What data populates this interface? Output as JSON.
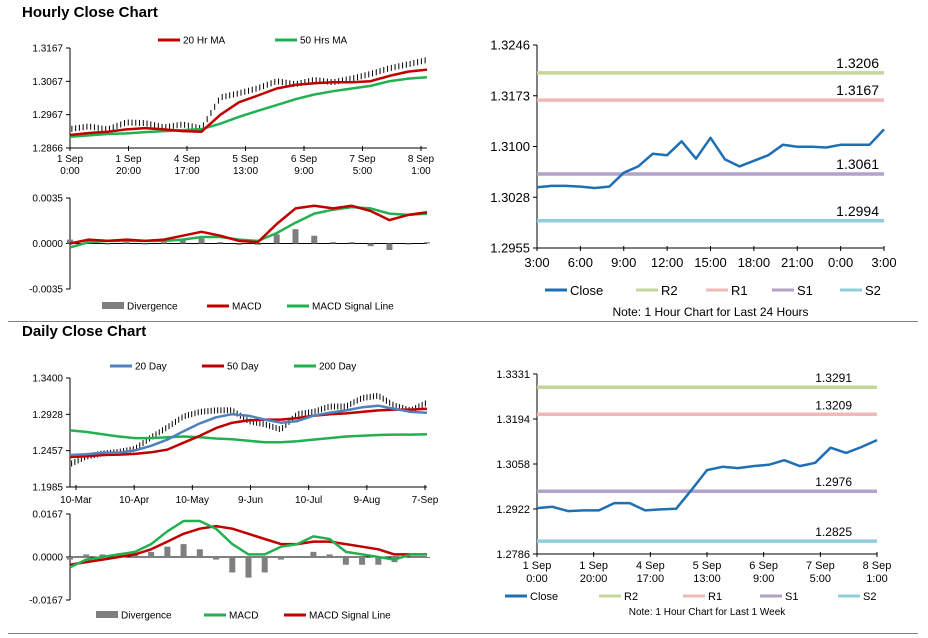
{
  "sections": {
    "hourly_title": "Hourly Close Chart",
    "daily_title": "Daily Close Chart"
  },
  "colors": {
    "ma_short": "#c00000",
    "ma_long": "#22b050",
    "ma_20day": "#4f81bd",
    "close": "#1f6fb5",
    "r2": "#c3d69b",
    "r1": "#f2b8b8",
    "s1": "#b3a2c7",
    "s2": "#92cddc",
    "divergence": "#7f7f7f"
  },
  "chart_data": [
    {
      "id": "hourly_price",
      "type": "line",
      "legend": [
        "20 Hr MA",
        "50 Hrs MA"
      ],
      "ylim": [
        1.2866,
        1.3167
      ],
      "yticks": [
        "1.3167",
        "1.3067",
        "1.2967",
        "1.2866"
      ],
      "xticks": [
        [
          "1 Sep",
          "0:00"
        ],
        [
          "1 Sep",
          "20:00"
        ],
        [
          "4 Sep",
          "17:00"
        ],
        [
          "5 Sep",
          "13:00"
        ],
        [
          "6 Sep",
          "9:00"
        ],
        [
          "7 Sep",
          "5:00"
        ],
        [
          "8 Sep",
          "1:00"
        ]
      ],
      "series": [
        {
          "name": "Price",
          "values": [
            1.2923,
            1.2931,
            1.2922,
            1.2943,
            1.2941,
            1.2928,
            1.2937,
            1.2925,
            1.3018,
            1.3031,
            1.3046,
            1.3067,
            1.3058,
            1.3071,
            1.3064,
            1.3075,
            1.3089,
            1.3106,
            1.3118,
            1.3131
          ]
        },
        {
          "name": "20 Hr MA",
          "values": [
            1.2905,
            1.2911,
            1.2915,
            1.2922,
            1.2926,
            1.2922,
            1.2917,
            1.2915,
            1.2966,
            1.3004,
            1.3024,
            1.3045,
            1.3056,
            1.3061,
            1.3064,
            1.3064,
            1.3067,
            1.3083,
            1.3096,
            1.3102
          ]
        },
        {
          "name": "50 Hrs MA",
          "values": [
            1.29,
            1.2904,
            1.2908,
            1.291,
            1.2914,
            1.2917,
            1.292,
            1.2923,
            1.2939,
            1.296,
            1.2978,
            1.2995,
            1.3013,
            1.3027,
            1.3037,
            1.3045,
            1.3053,
            1.3067,
            1.3075,
            1.3079
          ]
        }
      ]
    },
    {
      "id": "hourly_macd",
      "type": "line",
      "legend": [
        "Divergence",
        "MACD",
        "MACD Signal Line"
      ],
      "ylim": [
        -0.0035,
        0.0035
      ],
      "yticks": [
        "0.0035",
        "0.0000",
        "-0.0035"
      ],
      "series": [
        {
          "name": "MACD",
          "values": [
            0.0,
            0.0003,
            0.0002,
            0.0003,
            0.0002,
            0.0003,
            0.0006,
            0.0009,
            0.0006,
            0.0002,
            0.0001,
            0.0015,
            0.0027,
            0.0029,
            0.0027,
            0.0029,
            0.0025,
            0.0018,
            0.0022,
            0.0024
          ]
        },
        {
          "name": "MACD Signal Line",
          "values": [
            -0.0003,
            0.0001,
            0.0002,
            0.0002,
            0.0002,
            0.0002,
            0.0003,
            0.0005,
            0.0005,
            0.0003,
            0.0002,
            0.0008,
            0.0016,
            0.0023,
            0.0026,
            0.0028,
            0.0027,
            0.0023,
            0.0022,
            0.0023
          ]
        },
        {
          "name": "Divergence",
          "values": [
            0.0003,
            0.0002,
            0.0,
            0.0001,
            0.0,
            0.0001,
            0.0003,
            0.0004,
            0.0001,
            -0.0001,
            -0.0001,
            0.0007,
            0.0011,
            0.0006,
            0.0001,
            0.0001,
            -0.0002,
            -0.0005,
            0.0,
            0.0001
          ]
        }
      ]
    },
    {
      "id": "hourly_levels",
      "type": "line",
      "ylim": [
        1.2955,
        1.3246
      ],
      "yticks": [
        "1.3246",
        "1.3173",
        "1.3100",
        "1.3028",
        "1.2955"
      ],
      "xticks": [
        "3:00",
        "6:00",
        "9:00",
        "12:00",
        "15:00",
        "18:00",
        "21:00",
        "0:00",
        "3:00"
      ],
      "legend": [
        "Close",
        "R2",
        "R1",
        "S1",
        "S2"
      ],
      "levels": {
        "R2": 1.3206,
        "R1": 1.3167,
        "S1": 1.3061,
        "S2": 1.2994
      },
      "level_labels": {
        "R2": "1.3206",
        "R1": "1.3167",
        "S1": "1.3061",
        "S2": "1.2994"
      },
      "series": [
        {
          "name": "Close",
          "values": [
            1.3042,
            1.3044,
            1.3044,
            1.3043,
            1.3041,
            1.3043,
            1.3063,
            1.3072,
            1.309,
            1.3088,
            1.3108,
            1.3083,
            1.3113,
            1.3082,
            1.3072,
            1.308,
            1.3088,
            1.3103,
            1.31,
            1.31,
            1.3099,
            1.3103,
            1.3103,
            1.3103,
            1.3125
          ]
        }
      ],
      "note": "Note: 1 Hour Chart for Last 24 Hours"
    },
    {
      "id": "daily_price",
      "type": "line",
      "legend": [
        "20 Day",
        "50 Day",
        "200 Day"
      ],
      "ylim": [
        1.1985,
        1.34
      ],
      "yticks": [
        "1.3400",
        "1.2928",
        "1.2457",
        "1.1985"
      ],
      "xticks": [
        "10-Mar",
        "10-Apr",
        "10-May",
        "9-Jun",
        "10-Jul",
        "9-Aug",
        "7-Sep"
      ],
      "series": [
        {
          "name": "Price",
          "values": [
            1.228,
            1.238,
            1.242,
            1.244,
            1.248,
            1.263,
            1.276,
            1.29,
            1.296,
            1.298,
            1.298,
            1.284,
            1.28,
            1.273,
            1.293,
            1.296,
            1.303,
            1.303,
            1.314,
            1.317,
            1.304,
            1.298,
            1.308
          ]
        },
        {
          "name": "20 Day",
          "values": [
            1.24,
            1.241,
            1.243,
            1.243,
            1.246,
            1.252,
            1.26,
            1.271,
            1.281,
            1.289,
            1.293,
            1.291,
            1.286,
            1.282,
            1.284,
            1.291,
            1.295,
            1.298,
            1.302,
            1.304,
            1.3,
            1.296,
            1.295
          ]
        },
        {
          "name": "50 Day",
          "values": [
            1.2375,
            1.2385,
            1.24,
            1.2405,
            1.2415,
            1.2435,
            1.247,
            1.256,
            1.265,
            1.275,
            1.282,
            1.285,
            1.286,
            1.286,
            1.288,
            1.291,
            1.293,
            1.294,
            1.296,
            1.298,
            1.299,
            1.299,
            1.3
          ]
        },
        {
          "name": "200 Day",
          "values": [
            1.272,
            1.27,
            1.267,
            1.264,
            1.262,
            1.262,
            1.263,
            1.264,
            1.263,
            1.2615,
            1.2605,
            1.2585,
            1.2565,
            1.2565,
            1.258,
            1.26,
            1.262,
            1.264,
            1.265,
            1.266,
            1.2665,
            1.2665,
            1.267
          ]
        }
      ]
    },
    {
      "id": "daily_macd",
      "type": "line",
      "legend": [
        "Divergence",
        "MACD",
        "MACD Signal Line"
      ],
      "ylim": [
        -0.0167,
        0.0167
      ],
      "yticks": [
        "0.0167",
        "0.0000",
        "-0.0167"
      ],
      "series": [
        {
          "name": "MACD",
          "values": [
            -0.004,
            -0.001,
            0.0,
            0.001,
            0.002,
            0.005,
            0.01,
            0.014,
            0.014,
            0.011,
            0.005,
            0.001,
            0.001,
            0.004,
            0.005,
            0.008,
            0.007,
            0.002,
            0.001,
            0.0,
            -0.001,
            0.001,
            0.001
          ]
        },
        {
          "name": "MACD Signal Line",
          "values": [
            -0.003,
            -0.002,
            -0.001,
            0.0,
            0.001,
            0.003,
            0.006,
            0.009,
            0.011,
            0.012,
            0.011,
            0.009,
            0.007,
            0.005,
            0.005,
            0.006,
            0.006,
            0.005,
            0.004,
            0.003,
            0.001,
            0.001,
            0.001
          ]
        },
        {
          "name": "Divergence",
          "values": [
            -0.001,
            0.001,
            0.001,
            0.001,
            0.001,
            0.002,
            0.004,
            0.005,
            0.003,
            -0.001,
            -0.006,
            -0.008,
            -0.006,
            -0.001,
            0.0,
            0.002,
            0.001,
            -0.003,
            -0.003,
            -0.003,
            -0.002,
            0.0,
            0.0
          ]
        }
      ]
    },
    {
      "id": "daily_levels",
      "type": "line",
      "ylim": [
        1.2786,
        1.3331
      ],
      "yticks": [
        "1.3331",
        "1.3194",
        "1.3058",
        "1.2922",
        "1.2786"
      ],
      "xticks": [
        [
          "1 Sep",
          "0:00"
        ],
        [
          "1 Sep",
          "20:00"
        ],
        [
          "4 Sep",
          "17:00"
        ],
        [
          "5 Sep",
          "13:00"
        ],
        [
          "6 Sep",
          "9:00"
        ],
        [
          "7 Sep",
          "5:00"
        ],
        [
          "8 Sep",
          "1:00"
        ]
      ],
      "legend": [
        "Close",
        "R2",
        "R1",
        "S1",
        "S2"
      ],
      "levels": {
        "R2": 1.3291,
        "R1": 1.3209,
        "S1": 1.2976,
        "S2": 1.2825
      },
      "level_labels": {
        "R2": "1.3291",
        "R1": "1.3209",
        "S1": "1.2976",
        "S2": "1.2825"
      },
      "series": [
        {
          "name": "Close",
          "values": [
            1.2925,
            1.2929,
            1.2916,
            1.2918,
            1.2918,
            1.294,
            1.294,
            1.2918,
            1.2921,
            1.2923,
            1.298,
            1.304,
            1.305,
            1.3046,
            1.3052,
            1.3056,
            1.307,
            1.3052,
            1.3062,
            1.3108,
            1.3092,
            1.311,
            1.3131
          ]
        }
      ],
      "note": "Note: 1 Hour Chart for Last 1 Week"
    }
  ]
}
